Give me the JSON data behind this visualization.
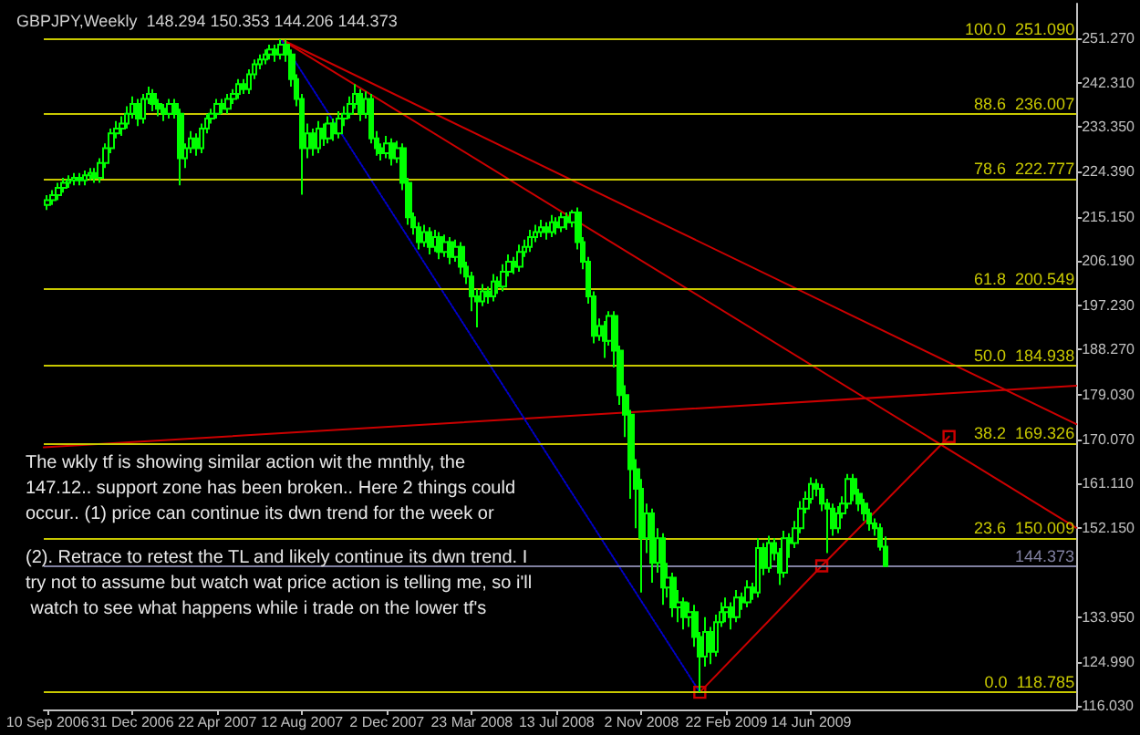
{
  "chart_data": {
    "type": "candlestick",
    "title": "GBPJPY,Weekly  148.294 150.353 144.206 144.373",
    "color": "#00ff00",
    "x": [
      "2006-09-10",
      "2006-09-17",
      "2006-09-24",
      "2006-10-01",
      "2006-10-08",
      "2006-10-15",
      "2006-10-22",
      "2006-10-29",
      "2006-11-05",
      "2006-11-12",
      "2006-11-19",
      "2006-11-26",
      "2006-12-03",
      "2006-12-10",
      "2006-12-17",
      "2006-12-24",
      "2006-12-31",
      "2007-01-07",
      "2007-01-14",
      "2007-01-21",
      "2007-01-28",
      "2007-02-04",
      "2007-02-11",
      "2007-02-18",
      "2007-02-25",
      "2007-03-04",
      "2007-03-11",
      "2007-03-18",
      "2007-03-25",
      "2007-04-01",
      "2007-04-08",
      "2007-04-15",
      "2007-04-22",
      "2007-04-29",
      "2007-05-06",
      "2007-05-13",
      "2007-05-20",
      "2007-05-27",
      "2007-06-03",
      "2007-06-10",
      "2007-06-17",
      "2007-06-24",
      "2007-07-01",
      "2007-07-08",
      "2007-07-15",
      "2007-07-22",
      "2007-07-29",
      "2007-08-05",
      "2007-08-12",
      "2007-08-19",
      "2007-08-26",
      "2007-09-02",
      "2007-09-09",
      "2007-09-16",
      "2007-09-23",
      "2007-09-30",
      "2007-10-07",
      "2007-10-14",
      "2007-10-21",
      "2007-10-28",
      "2007-11-04",
      "2007-11-11",
      "2007-11-18",
      "2007-11-25",
      "2007-12-02",
      "2007-12-09",
      "2007-12-16",
      "2007-12-23",
      "2007-12-30",
      "2008-01-06",
      "2008-01-13",
      "2008-01-20",
      "2008-01-27",
      "2008-02-03",
      "2008-02-10",
      "2008-02-17",
      "2008-02-24",
      "2008-03-02",
      "2008-03-09",
      "2008-03-16",
      "2008-03-23",
      "2008-03-30",
      "2008-04-06",
      "2008-04-13",
      "2008-04-20",
      "2008-04-27",
      "2008-05-04",
      "2008-05-11",
      "2008-05-18",
      "2008-05-25",
      "2008-06-01",
      "2008-06-08",
      "2008-06-15",
      "2008-06-22",
      "2008-06-29",
      "2008-07-06",
      "2008-07-13",
      "2008-07-20",
      "2008-07-27",
      "2008-08-03",
      "2008-08-10",
      "2008-08-17",
      "2008-08-24",
      "2008-08-31",
      "2008-09-07",
      "2008-09-14",
      "2008-09-21",
      "2008-09-28",
      "2008-10-05",
      "2008-10-12",
      "2008-10-19",
      "2008-10-26",
      "2008-11-02",
      "2008-11-09",
      "2008-11-16",
      "2008-11-23",
      "2008-11-30",
      "2008-12-07",
      "2008-12-14",
      "2008-12-21",
      "2008-12-28",
      "2009-01-04",
      "2009-01-11",
      "2009-01-18",
      "2009-01-25",
      "2009-02-01",
      "2009-02-08",
      "2009-02-15",
      "2009-02-22",
      "2009-03-01",
      "2009-03-08",
      "2009-03-15",
      "2009-03-22",
      "2009-03-29",
      "2009-04-05",
      "2009-04-12",
      "2009-04-19",
      "2009-04-26",
      "2009-05-03",
      "2009-05-10",
      "2009-05-17",
      "2009-05-24",
      "2009-05-31",
      "2009-06-07",
      "2009-06-14",
      "2009-06-21",
      "2009-06-28",
      "2009-07-05",
      "2009-07-12",
      "2009-07-19",
      "2009-07-26",
      "2009-08-02",
      "2009-08-09",
      "2009-08-16",
      "2009-08-23",
      "2009-08-30",
      "2009-09-06",
      "2009-09-13",
      "2009-09-20"
    ],
    "ohlc": [
      [
        217.5,
        219.5,
        216.5,
        218.5
      ],
      [
        218.5,
        220.5,
        217.5,
        219.5
      ],
      [
        219.5,
        222,
        218.5,
        221
      ],
      [
        221,
        223,
        220,
        222
      ],
      [
        222,
        223.5,
        221,
        222.5
      ],
      [
        222.5,
        224,
        221.5,
        223
      ],
      [
        223,
        224,
        221.5,
        222.5
      ],
      [
        222.5,
        224.5,
        221.5,
        223.5
      ],
      [
        223.5,
        225,
        222.5,
        224
      ],
      [
        224,
        225,
        222,
        223
      ],
      [
        223,
        227,
        222,
        226
      ],
      [
        226,
        230,
        225,
        229
      ],
      [
        229,
        233,
        228,
        232
      ],
      [
        232,
        234.5,
        231,
        233
      ],
      [
        233,
        235.5,
        231.5,
        234
      ],
      [
        234,
        237.5,
        233,
        236
      ],
      [
        236,
        239.5,
        235,
        238
      ],
      [
        238,
        239,
        233.5,
        235
      ],
      [
        235,
        240,
        234,
        239
      ],
      [
        239,
        241.5,
        238,
        240
      ],
      [
        240,
        241,
        236.5,
        238
      ],
      [
        238,
        239,
        235.5,
        237
      ],
      [
        237,
        238,
        234.5,
        236
      ],
      [
        236,
        239,
        235,
        238
      ],
      [
        238,
        239,
        235,
        236
      ],
      [
        236,
        237,
        221.5,
        227
      ],
      [
        227,
        230,
        225,
        229
      ],
      [
        229,
        232.5,
        228,
        231
      ],
      [
        231,
        232,
        227.5,
        229
      ],
      [
        229,
        234,
        228,
        233
      ],
      [
        233,
        236,
        232,
        235
      ],
      [
        235,
        237,
        234,
        236
      ],
      [
        236,
        239,
        235,
        238
      ],
      [
        238,
        239,
        236,
        237
      ],
      [
        237,
        240,
        236,
        239
      ],
      [
        239,
        241,
        238,
        240
      ],
      [
        240,
        243,
        239,
        242
      ],
      [
        242,
        243,
        240,
        241
      ],
      [
        241,
        245,
        240,
        244
      ],
      [
        244,
        247,
        243,
        246
      ],
      [
        246,
        248,
        245,
        247
      ],
      [
        247,
        249,
        246,
        248
      ],
      [
        248,
        250,
        247,
        249
      ],
      [
        249,
        250,
        246.5,
        248
      ],
      [
        248,
        251.1,
        247,
        250
      ],
      [
        250,
        251,
        246.5,
        248
      ],
      [
        248,
        249,
        241.5,
        243
      ],
      [
        243,
        244,
        237.5,
        239
      ],
      [
        239,
        240,
        219.6,
        229
      ],
      [
        229,
        234,
        227,
        232
      ],
      [
        232,
        233,
        227.5,
        229
      ],
      [
        229,
        234.5,
        228,
        233
      ],
      [
        233,
        234,
        229.5,
        231
      ],
      [
        231,
        235.5,
        230,
        234
      ],
      [
        234,
        235,
        230.5,
        232
      ],
      [
        232,
        236.5,
        231,
        235
      ],
      [
        235,
        237.5,
        233.5,
        236
      ],
      [
        236,
        239.5,
        235,
        238
      ],
      [
        238,
        242,
        237,
        240
      ],
      [
        240,
        241,
        234.5,
        236
      ],
      [
        236,
        240.5,
        235,
        239
      ],
      [
        239,
        240,
        230,
        231
      ],
      [
        231,
        232.5,
        227.5,
        229
      ],
      [
        229,
        230,
        226.5,
        228
      ],
      [
        228,
        231.5,
        227,
        230
      ],
      [
        230,
        231,
        225.5,
        227
      ],
      [
        227,
        230.5,
        226,
        229
      ],
      [
        229,
        230,
        220.5,
        222
      ],
      [
        222,
        223,
        213.5,
        215
      ],
      [
        215,
        216,
        211.5,
        213
      ],
      [
        213,
        214,
        208.5,
        210
      ],
      [
        210,
        213.5,
        209,
        212
      ],
      [
        212,
        213,
        207.5,
        209
      ],
      [
        209,
        212.5,
        208,
        211
      ],
      [
        211,
        212,
        206.5,
        208
      ],
      [
        208,
        211.5,
        207,
        210
      ],
      [
        210,
        211,
        205.5,
        207
      ],
      [
        207,
        210.5,
        206,
        209
      ],
      [
        209,
        210,
        203.5,
        205
      ],
      [
        205,
        206,
        201.5,
        203
      ],
      [
        203,
        204,
        196,
        199
      ],
      [
        199,
        200.5,
        192.7,
        198
      ],
      [
        198,
        201.5,
        197,
        200
      ],
      [
        200,
        201,
        197.5,
        199
      ],
      [
        199,
        203.5,
        198,
        202
      ],
      [
        202,
        203,
        199.5,
        201
      ],
      [
        201,
        205.5,
        200,
        204
      ],
      [
        204,
        207.5,
        203,
        206
      ],
      [
        206,
        207,
        203.5,
        205
      ],
      [
        205,
        209.5,
        204,
        208
      ],
      [
        208,
        210.5,
        207,
        209
      ],
      [
        209,
        212.5,
        208,
        211
      ],
      [
        211,
        213.5,
        210,
        212
      ],
      [
        212,
        214.5,
        211,
        213
      ],
      [
        213,
        214,
        210.5,
        212
      ],
      [
        212,
        215.5,
        211,
        214
      ],
      [
        214,
        215,
        211.5,
        213
      ],
      [
        213,
        216,
        212,
        215
      ],
      [
        215,
        216,
        212.5,
        214
      ],
      [
        214,
        216.5,
        213,
        216
      ],
      [
        216,
        217,
        208.5,
        210
      ],
      [
        210,
        211,
        204.5,
        206
      ],
      [
        206,
        207,
        197.5,
        199
      ],
      [
        199,
        200,
        189.5,
        191
      ],
      [
        191,
        194.5,
        190,
        193
      ],
      [
        193,
        194,
        186.5,
        190
      ],
      [
        190,
        196,
        189,
        195
      ],
      [
        195,
        196,
        184.6,
        188
      ],
      [
        188,
        189,
        177,
        179
      ],
      [
        179,
        181,
        170.5,
        175
      ],
      [
        175,
        176,
        158,
        164
      ],
      [
        164,
        166,
        152,
        160
      ],
      [
        160,
        162,
        139,
        150
      ],
      [
        150,
        157,
        147,
        155
      ],
      [
        155,
        156,
        141,
        145
      ],
      [
        145,
        152,
        143,
        150
      ],
      [
        150,
        151,
        136.5,
        140
      ],
      [
        140,
        145,
        138,
        142
      ],
      [
        142,
        143,
        134,
        136
      ],
      [
        136,
        139.5,
        133,
        137
      ],
      [
        137,
        138,
        131.5,
        134
      ],
      [
        134,
        137,
        132,
        135
      ],
      [
        135,
        136.5,
        128,
        130
      ],
      [
        130,
        131,
        118.8,
        126
      ],
      [
        126,
        134,
        124,
        131
      ],
      [
        131,
        132,
        124.5,
        127
      ],
      [
        127,
        134.5,
        126,
        133
      ],
      [
        133,
        137,
        132,
        135
      ],
      [
        135,
        138,
        133,
        136
      ],
      [
        136,
        137,
        131.5,
        134
      ],
      [
        134,
        139.5,
        133,
        138
      ],
      [
        138,
        139,
        135.5,
        137
      ],
      [
        137,
        141.5,
        136,
        140
      ],
      [
        140,
        141,
        137.5,
        139
      ],
      [
        139,
        150,
        138,
        148
      ],
      [
        148,
        149,
        142.5,
        144
      ],
      [
        144,
        150.5,
        143,
        149
      ],
      [
        149,
        150,
        145.5,
        147
      ],
      [
        147,
        148,
        140.5,
        143
      ],
      [
        143,
        151.5,
        142,
        150
      ],
      [
        150,
        151,
        146,
        149
      ],
      [
        149,
        153.5,
        148,
        152
      ],
      [
        152,
        157.5,
        151,
        156
      ],
      [
        156,
        159.5,
        155,
        158
      ],
      [
        158,
        162.3,
        157,
        161
      ],
      [
        161,
        162,
        158.5,
        160
      ],
      [
        160,
        161,
        155.5,
        157
      ],
      [
        157,
        158,
        147,
        156
      ],
      [
        156,
        157,
        150.5,
        152
      ],
      [
        152,
        156.5,
        151,
        155
      ],
      [
        155,
        158.5,
        154,
        157
      ],
      [
        157,
        163,
        156,
        162
      ],
      [
        162,
        163,
        157.5,
        159
      ],
      [
        159,
        160,
        155.5,
        157
      ],
      [
        157,
        158,
        153.5,
        155
      ],
      [
        155,
        156,
        151.5,
        153
      ],
      [
        153,
        154,
        150.5,
        152
      ],
      [
        152,
        153,
        147.5,
        148.294
      ],
      [
        148.294,
        150.353,
        144.206,
        144.373
      ]
    ],
    "series": [
      {
        "type": "line",
        "color": "#cc0000",
        "x": [
          "2007-07-15",
          "2010-05-30"
        ],
        "values": [
          251.09,
          173.1
        ],
        "marker": "none",
        "line_style": "solid"
      },
      {
        "type": "line",
        "color": "#cc0000",
        "x": [
          "2007-07-15",
          "2010-05-30"
        ],
        "values": [
          251.09,
          152.1
        ],
        "marker": "none",
        "line_style": "solid"
      },
      {
        "type": "line",
        "color": "#cc0000",
        "x": [
          "2006-09-05",
          "2010-05-30"
        ],
        "values": [
          168.4,
          180.9
        ],
        "marker": "none",
        "line_style": "solid"
      },
      {
        "type": "line",
        "color": "#0000cc",
        "x": [
          "2007-07-15",
          "2009-01-18"
        ],
        "values": [
          251.09,
          118.785
        ],
        "marker": "none",
        "line_style": "dotted"
      },
      {
        "type": "line",
        "color": "#cc0000",
        "x": [
          "2009-01-18",
          "2009-06-28",
          "2009-12-13"
        ],
        "values": [
          118.785,
          144.4,
          170.6
        ],
        "marker": "square",
        "line_style": "solid"
      }
    ],
    "xlim": [
      "2006-09-05",
      "2010-05-30"
    ],
    "xticks": [
      {
        "value": "2006-09-10",
        "label": "10 Sep 2006"
      },
      {
        "value": "2006-12-31",
        "label": "31 Dec 2006"
      },
      {
        "value": "2007-04-22",
        "label": "22 Apr 2007"
      },
      {
        "value": "2007-08-12",
        "label": "12 Aug 2007"
      },
      {
        "value": "2007-12-02",
        "label": "2 Dec 2007"
      },
      {
        "value": "2008-03-23",
        "label": "23 Mar 2008"
      },
      {
        "value": "2008-07-13",
        "label": "13 Jul 2008"
      },
      {
        "value": "2008-11-02",
        "label": "2 Nov 2008"
      },
      {
        "value": "2009-02-22",
        "label": "22 Feb 2009"
      },
      {
        "value": "2009-06-14",
        "label": "14 Jun 2009"
      }
    ],
    "ylim": [
      115.3,
      258.3
    ],
    "yticks": [
      {
        "value": 251.27,
        "label": "251.270"
      },
      {
        "value": 242.31,
        "label": "242.310"
      },
      {
        "value": 233.35,
        "label": "233.350"
      },
      {
        "value": 224.39,
        "label": "224.390"
      },
      {
        "value": 215.15,
        "label": "215.150"
      },
      {
        "value": 206.19,
        "label": "206.190"
      },
      {
        "value": 197.23,
        "label": "197.230"
      },
      {
        "value": 188.27,
        "label": "188.270"
      },
      {
        "value": 179.03,
        "label": "179.030"
      },
      {
        "value": 170.07,
        "label": "170.070"
      },
      {
        "value": 161.11,
        "label": "161.110"
      },
      {
        "value": 152.15,
        "label": "152.150"
      },
      {
        "value": 133.95,
        "label": "133.950"
      },
      {
        "value": 124.99,
        "label": "124.990"
      },
      {
        "value": 116.03,
        "label": "116.030"
      }
    ],
    "ref_lines": [
      {
        "axis": "y",
        "value": 251.09,
        "label": "100.0  251.090",
        "color": "#c8c800"
      },
      {
        "axis": "y",
        "value": 236.007,
        "label": "88.6  236.007",
        "color": "#c8c800"
      },
      {
        "axis": "y",
        "value": 222.777,
        "label": "78.6  222.777",
        "color": "#c8c800"
      },
      {
        "axis": "y",
        "value": 200.549,
        "label": "61.8  200.549",
        "color": "#c8c800"
      },
      {
        "axis": "y",
        "value": 184.938,
        "label": "50.0  184.938",
        "color": "#c8c800"
      },
      {
        "axis": "y",
        "value": 169.326,
        "label": "38.2  169.326",
        "color": "#c8c800"
      },
      {
        "axis": "y",
        "value": 150.009,
        "label": "23.6  150.009",
        "color": "#c8c800"
      },
      {
        "axis": "y",
        "value": 118.785,
        "label": "0.0  118.785",
        "color": "#c8c800"
      },
      {
        "axis": "y",
        "value": 144.373,
        "label": "144.373",
        "color": "#8080a0"
      }
    ],
    "annotations": [
      "The wkly tf is showing similar action wit the mnthly, the 147.12.. support zone has been broken.. Here 2 things could occur.. (1) price can continue its dwn trend for the week or",
      "(2). Retrace to retest the TL and likely continue its dwn trend. I try not to assume but watch wat price action is telling me, so i'll watch to see what happens while i trade on the lower tf's"
    ]
  }
}
